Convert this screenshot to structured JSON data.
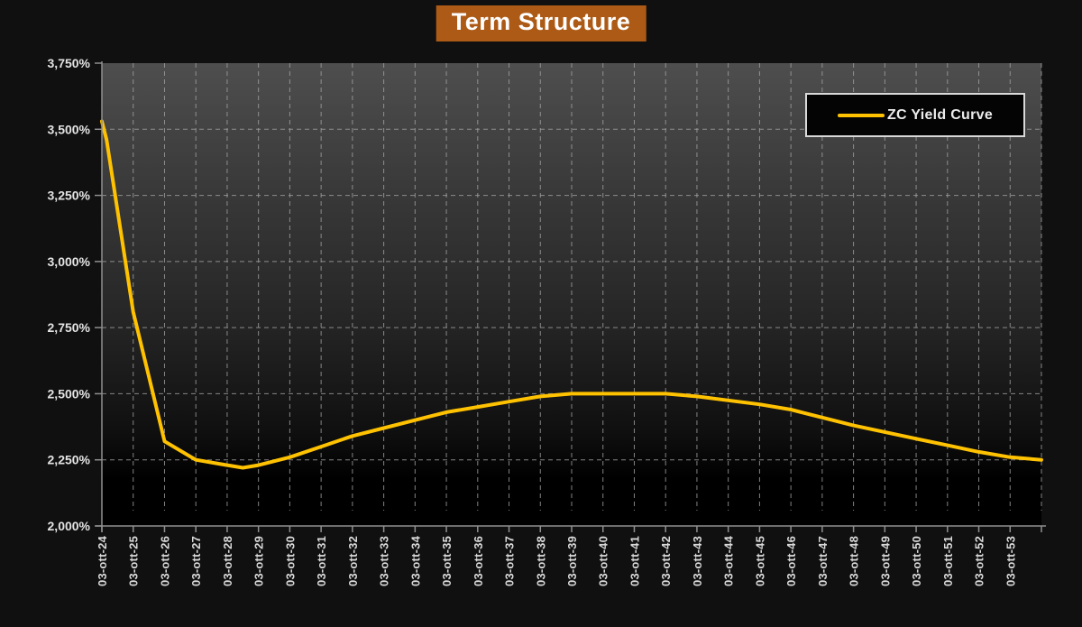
{
  "title": {
    "text": "Term Structure",
    "bg_color": "#AC5A16",
    "text_color": "#FFFFFF"
  },
  "legend": {
    "label": "ZC Yield Curve",
    "position": "top-right"
  },
  "colors": {
    "page_background": "#101010",
    "plot_wall_top": "#4e4e4e",
    "plot_wall_mid": "#262626",
    "plot_wall_bottom": "#000000",
    "gridline": "#a3a3a3",
    "axis": "#8f8f8f",
    "tick_label": "#e3e3e3",
    "curve": "#FFC200",
    "legend_border": "#d9d9d9",
    "legend_bg": "#040404",
    "title_bg": "#AC5A16"
  },
  "chart_data": {
    "type": "line",
    "title": "Term Structure",
    "xlabel": "",
    "ylabel": "",
    "grid": true,
    "legend_position": "top-right",
    "ylim": [
      2.0,
      3.75
    ],
    "y_step": 0.25,
    "y_tick_labels": [
      "3,750%",
      "3,500%",
      "3,250%",
      "3,000%",
      "2,750%",
      "2,500%",
      "2,250%",
      "2,000%"
    ],
    "x_tick_labels": [
      "03-ott-24",
      "03-ott-25",
      "03-ott-26",
      "03-ott-27",
      "03-ott-28",
      "03-ott-29",
      "03-ott-30",
      "03-ott-31",
      "03-ott-32",
      "03-ott-33",
      "03-ott-34",
      "03-ott-35",
      "03-ott-36",
      "03-ott-37",
      "03-ott-38",
      "03-ott-39",
      "03-ott-40",
      "03-ott-41",
      "03-ott-42",
      "03-ott-43",
      "03-ott-44",
      "03-ott-45",
      "03-ott-46",
      "03-ott-47",
      "03-ott-48",
      "03-ott-49",
      "03-ott-50",
      "03-ott-51",
      "03-ott-52",
      "03-ott-53"
    ],
    "x_unit": "years (index 0 = 03-ott-24, curve extends ~1 unit past last label to plot edge)",
    "series": [
      {
        "name": "ZC Yield Curve",
        "color": "#FFC200",
        "points": [
          [
            0,
            3.53
          ],
          [
            0.15,
            3.46
          ],
          [
            1,
            2.81
          ],
          [
            2,
            2.32
          ],
          [
            3,
            2.25
          ],
          [
            4,
            2.23
          ],
          [
            4.5,
            2.22
          ],
          [
            5,
            2.23
          ],
          [
            6,
            2.26
          ],
          [
            7,
            2.3
          ],
          [
            8,
            2.34
          ],
          [
            9,
            2.37
          ],
          [
            10,
            2.4
          ],
          [
            11,
            2.43
          ],
          [
            12,
            2.45
          ],
          [
            13,
            2.47
          ],
          [
            14,
            2.49
          ],
          [
            15,
            2.5
          ],
          [
            16,
            2.5
          ],
          [
            17,
            2.5
          ],
          [
            18,
            2.5
          ],
          [
            19,
            2.49
          ],
          [
            20,
            2.475
          ],
          [
            21,
            2.46
          ],
          [
            22,
            2.44
          ],
          [
            23,
            2.41
          ],
          [
            24,
            2.38
          ],
          [
            25,
            2.355
          ],
          [
            26,
            2.33
          ],
          [
            27,
            2.305
          ],
          [
            28,
            2.28
          ],
          [
            29,
            2.26
          ],
          [
            30,
            2.25
          ]
        ]
      }
    ]
  }
}
